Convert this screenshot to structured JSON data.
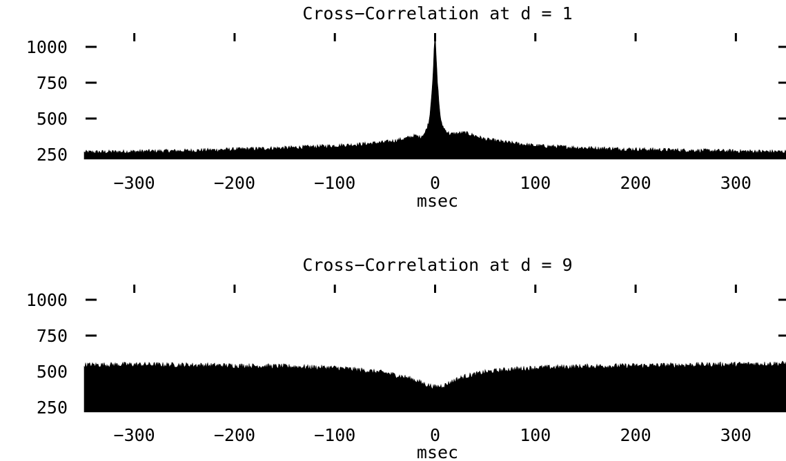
{
  "colors": {
    "foreground": "#000000",
    "background": "#ffffff"
  },
  "chart_data": [
    {
      "type": "area",
      "title": "Cross−Correlation at d = 1",
      "xlabel": "msec",
      "ylabel": "",
      "xlim": [
        -350,
        350
      ],
      "ylim": [
        250,
        1100
      ],
      "xticks": [
        -300,
        -200,
        -100,
        0,
        100,
        200,
        300
      ],
      "xtick_labels": [
        "−300",
        "−200",
        "−100",
        "0",
        "100",
        "200",
        "300"
      ],
      "yticks": [
        1000,
        750,
        500,
        250
      ],
      "ytick_labels": [
        "1000",
        "750",
        "500",
        "250"
      ],
      "grid": false,
      "series": [
        {
          "x": [
            -350,
            -300,
            -250,
            -200,
            -150,
            -100,
            -75,
            -50,
            -40,
            -30,
            -20,
            -15,
            -10,
            -6,
            -4,
            -2,
            -1,
            0,
            1,
            2,
            4,
            6,
            10,
            15,
            20,
            30,
            40,
            50,
            75,
            100,
            150,
            200,
            250,
            300,
            350
          ],
          "values": [
            265,
            270,
            275,
            285,
            295,
            310,
            320,
            335,
            345,
            360,
            380,
            370,
            400,
            480,
            620,
            820,
            980,
            1090,
            950,
            800,
            600,
            470,
            420,
            390,
            395,
            400,
            380,
            355,
            330,
            310,
            295,
            285,
            278,
            272,
            268
          ]
        }
      ]
    },
    {
      "type": "area",
      "title": "Cross−Correlation at d = 9",
      "xlabel": "msec",
      "ylabel": "",
      "xlim": [
        -350,
        350
      ],
      "ylim": [
        250,
        1100
      ],
      "xticks": [
        -300,
        -200,
        -100,
        0,
        100,
        200,
        300
      ],
      "xtick_labels": [
        "−300",
        "−200",
        "−100",
        "0",
        "100",
        "200",
        "300"
      ],
      "yticks": [
        1000,
        750,
        500,
        250
      ],
      "ytick_labels": [
        "1000",
        "750",
        "500",
        "250"
      ],
      "grid": false,
      "series": [
        {
          "x": [
            -350,
            -300,
            -250,
            -200,
            -150,
            -100,
            -75,
            -50,
            -30,
            -20,
            -10,
            0,
            10,
            20,
            30,
            50,
            75,
            100,
            150,
            200,
            250,
            300,
            350
          ],
          "values": [
            545,
            548,
            545,
            540,
            535,
            525,
            510,
            490,
            460,
            440,
            410,
            390,
            405,
            440,
            465,
            495,
            515,
            525,
            535,
            540,
            545,
            550,
            555
          ]
        }
      ]
    }
  ]
}
